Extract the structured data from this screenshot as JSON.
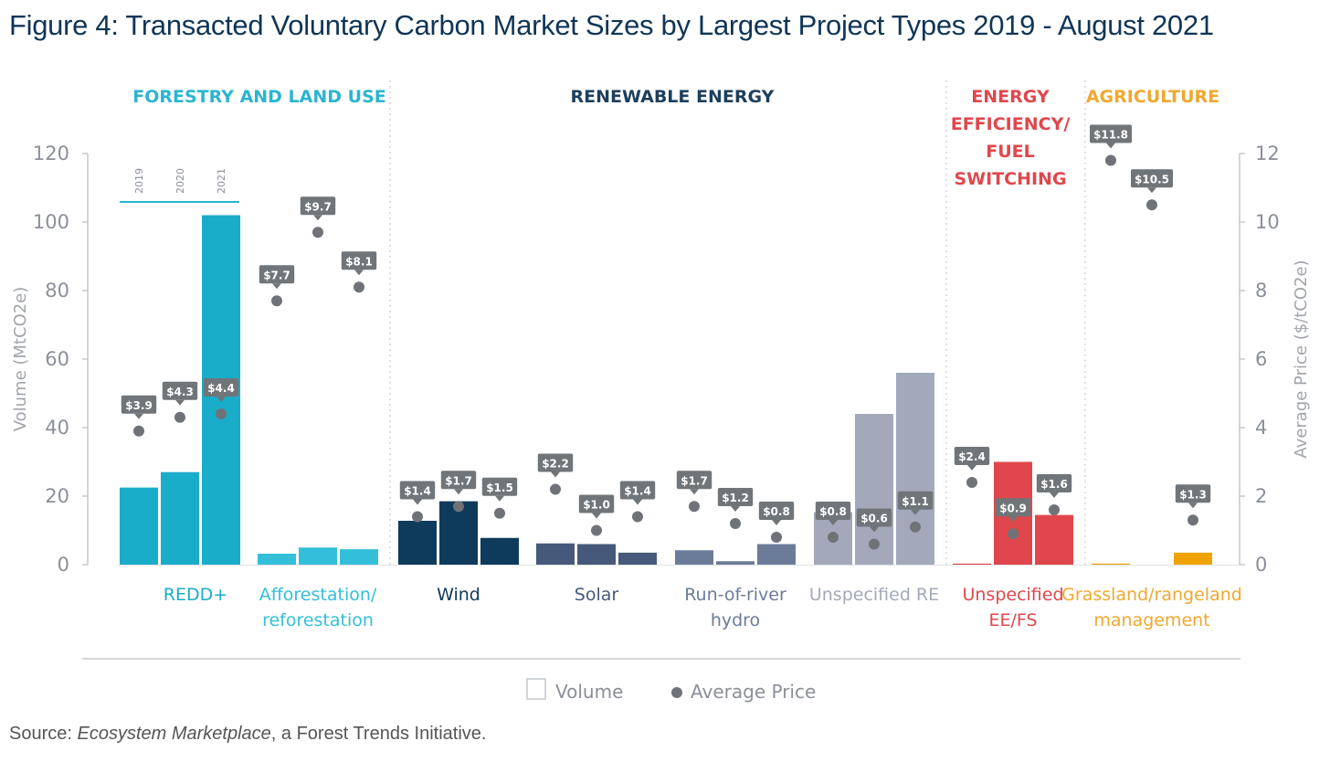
{
  "title": "Figure 4: Transacted Voluntary Carbon Market Sizes by Largest Project Types 2019 - August 2021",
  "source": {
    "prefix": "Source: ",
    "italic": "Ecosystem Marketplace",
    "suffix": ", a Forest Trends Initiative."
  },
  "chart_data": {
    "type": "bar",
    "ylabel": "Volume (MtCO2e)",
    "y2label": "Average Price ($/tCO2e)",
    "ylim": [
      0,
      120
    ],
    "y2lim": [
      0,
      12
    ],
    "yticks": [
      "0",
      "20",
      "40",
      "60",
      "80",
      "100",
      "120"
    ],
    "y2ticks": [
      "0",
      "2",
      "4",
      "6",
      "8",
      "10",
      "12"
    ],
    "years": [
      "2019",
      "2020",
      "2021"
    ],
    "legend": {
      "volume": "Volume",
      "price": "Average Price",
      "position": "bottom-center"
    },
    "groups": [
      {
        "label": [
          "FORESTRY AND LAND USE"
        ],
        "color": "#2bb5d0"
      },
      {
        "label": [
          "RENEWABLE ENERGY"
        ],
        "color": "#1d3f5e"
      },
      {
        "label": [
          "ENERGY",
          "EFFICIENCY/",
          "FUEL",
          "SWITCHING"
        ],
        "color": "#e0474c"
      },
      {
        "label": [
          "AGRICULTURE"
        ],
        "color": "#f0a830"
      }
    ],
    "categories": [
      {
        "name": [
          "REDD+"
        ],
        "group": 0,
        "color": "#1aadca",
        "label_color": "#1aadca",
        "volume": [
          22.5,
          27,
          102
        ],
        "price": [
          3.9,
          4.3,
          4.4
        ],
        "price_labels": [
          "$3.9",
          "$4.3",
          "$4.4"
        ]
      },
      {
        "name": [
          "Afforestation/",
          "reforestation"
        ],
        "group": 0,
        "color": "#33bfd9",
        "label_color": "#33bfd9",
        "volume": [
          3.2,
          5,
          4.5
        ],
        "price": [
          7.7,
          9.7,
          8.1
        ],
        "price_labels": [
          "$7.7",
          "$9.7",
          "$8.1"
        ]
      },
      {
        "name": [
          "Wind"
        ],
        "group": 1,
        "color": "#0e3a5c",
        "label_color": "#0e3a5c",
        "volume": [
          12.8,
          18.5,
          7.8
        ],
        "price": [
          1.4,
          1.7,
          1.5
        ],
        "price_labels": [
          "$1.4",
          "$1.7",
          "$1.5"
        ]
      },
      {
        "name": [
          "Solar"
        ],
        "group": 1,
        "color": "#46597a",
        "label_color": "#46597a",
        "volume": [
          6.2,
          6,
          3.5
        ],
        "price": [
          2.2,
          1.0,
          1.4
        ],
        "price_labels": [
          "$2.2",
          "$1.0",
          "$1.4"
        ]
      },
      {
        "name": [
          "Run-of-river",
          "hydro"
        ],
        "group": 1,
        "color": "#6b7c99",
        "label_color": "#6b7c99",
        "volume": [
          4.2,
          1,
          6
        ],
        "price": [
          1.7,
          1.2,
          0.8
        ],
        "price_labels": [
          "$1.7",
          "$1.2",
          "$0.8"
        ]
      },
      {
        "name": [
          "Unspecified RE"
        ],
        "group": 1,
        "color": "#a3a9bb",
        "label_color": "#a3a9bb",
        "volume": [
          15.3,
          44,
          56
        ],
        "price": [
          0.8,
          0.6,
          1.1
        ],
        "price_labels": [
          "$0.8",
          "$0.6",
          "$1.1"
        ]
      },
      {
        "name": [
          "Unspecified",
          "EE/FS"
        ],
        "group": 2,
        "color": "#e0474c",
        "label_color": "#e0474c",
        "volume": [
          0.3,
          30,
          14.5
        ],
        "price": [
          2.4,
          0.9,
          1.6
        ],
        "price_labels": [
          "$2.4",
          "$0.9",
          "$1.6"
        ]
      },
      {
        "name": [
          "Grassland/rangeland",
          "management"
        ],
        "group": 3,
        "color": "#f0a300",
        "label_color": "#f0a830",
        "volume": [
          0.3,
          0,
          3.5
        ],
        "price": [
          11.8,
          10.5,
          1.3
        ],
        "price_labels": [
          "$11.8",
          "$10.5",
          "$1.3"
        ]
      }
    ]
  }
}
